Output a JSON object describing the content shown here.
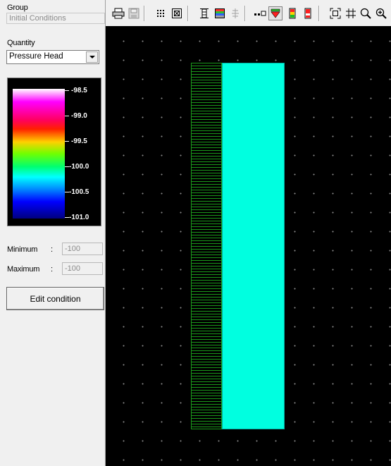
{
  "panel": {
    "group_label": "Group",
    "group_value": "Initial Conditions",
    "quantity_label": "Quantity",
    "quantity_value": "Pressure Head",
    "legend_ticks": [
      "-98.5",
      "-99.0",
      "-99.5",
      "-100.0",
      "-100.5",
      "-101.0"
    ],
    "minimum_label": "Minimum",
    "minimum_value": "-100",
    "maximum_label": "Maximum",
    "maximum_value": "-100",
    "colon": ":",
    "edit_button": "Edit condition"
  },
  "toolbar": {
    "icons": [
      "print-icon",
      "save-icon",
      "grid-dots-icon",
      "zoom-box-icon",
      "column-icon",
      "color-map-icon",
      "tree-icon",
      "mesh-icon",
      "dropdown-palette-icon",
      "bar-green-icon",
      "bar-red-icon",
      "fit-icon",
      "grid-icon",
      "zoom-icon",
      "zoom-plus-icon"
    ],
    "pressed": "dropdown-palette-icon"
  },
  "colors": {
    "background": "#000000",
    "domain_fill": "#00ffe0",
    "hatch": "#1a9a1a",
    "panel": "#f0f0f0"
  }
}
